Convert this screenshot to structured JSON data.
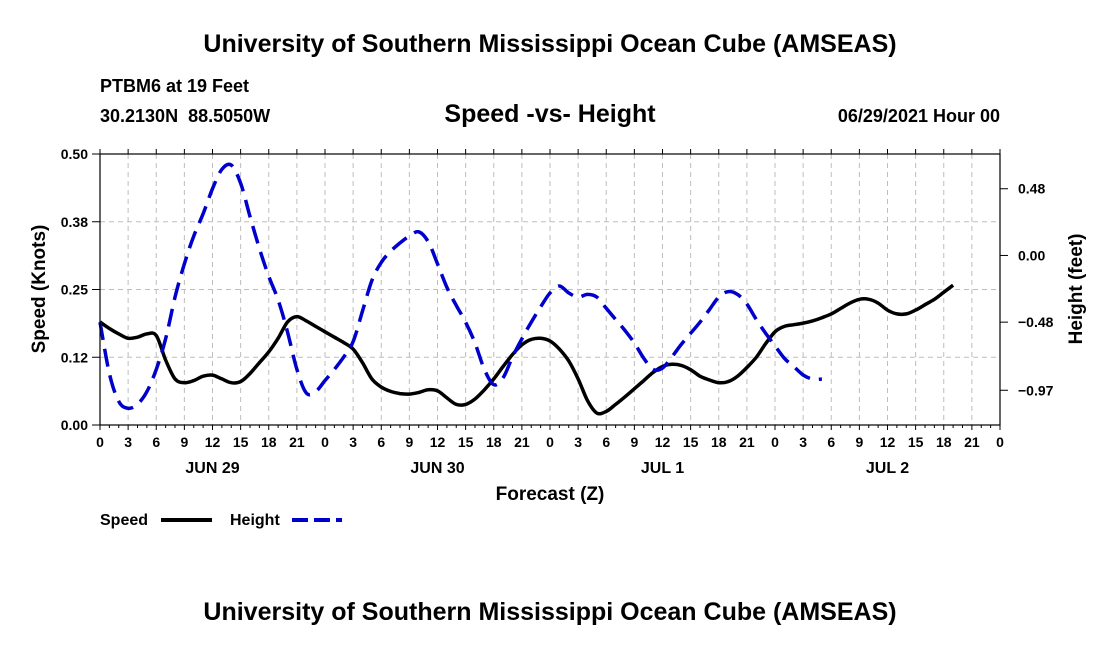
{
  "header": {
    "title": "University of Southern Mississippi Ocean Cube (AMSEAS)",
    "station": "PTBM6 at 19 Feet",
    "coords": "30.2130N  88.5050W",
    "subtitle": "Speed -vs- Height",
    "run_time": "06/29/2021 Hour 00"
  },
  "footer": {
    "title": "University of Southern Mississippi Ocean Cube (AMSEAS)"
  },
  "chart_data": {
    "type": "line",
    "title": "Speed -vs- Height",
    "xlabel": "Forecast (Z)",
    "ylabel": "Speed (Knots)",
    "y2label": "Height (feet)",
    "xlim": [
      0,
      96
    ],
    "ylim": [
      0,
      0.5
    ],
    "y2lim": [
      -1.22,
      0.73
    ],
    "x_ticks": [
      0,
      3,
      6,
      9,
      12,
      15,
      18,
      21,
      24,
      27,
      30,
      33,
      36,
      39,
      42,
      45,
      48,
      51,
      54,
      57,
      60,
      63,
      66,
      69,
      72,
      75,
      78,
      81,
      84,
      87,
      90,
      93,
      96
    ],
    "x_tick_labels": [
      "0",
      "3",
      "6",
      "9",
      "12",
      "15",
      "18",
      "21",
      "0",
      "3",
      "6",
      "9",
      "12",
      "15",
      "18",
      "21",
      "0",
      "3",
      "6",
      "9",
      "12",
      "15",
      "18",
      "21",
      "0",
      "3",
      "6",
      "9",
      "12",
      "15",
      "18",
      "21",
      "0"
    ],
    "day_labels": [
      {
        "label": "JUN 29",
        "x": 12
      },
      {
        "label": "JUN 30",
        "x": 36
      },
      {
        "label": "JUL 1",
        "x": 60
      },
      {
        "label": "JUL 2",
        "x": 84
      }
    ],
    "y_ticks": [
      0,
      0.125,
      0.25,
      0.375,
      0.5
    ],
    "y_tick_labels": [
      "0.00",
      "0.12",
      "0.25",
      "0.38",
      "0.50"
    ],
    "y2_ticks": [
      0.48,
      0.0,
      -0.48,
      -0.97
    ],
    "y2_tick_labels": [
      "0.48",
      "0.00",
      "−0.48",
      "−0.97"
    ],
    "grid": true,
    "legend_position": "bottom-left",
    "series": [
      {
        "name": "Speed",
        "axis": "left",
        "color": "#000000",
        "style": "solid",
        "points": [
          [
            0,
            0.19
          ],
          [
            1,
            0.178
          ],
          [
            2,
            0.168
          ],
          [
            3,
            0.16
          ],
          [
            4,
            0.162
          ],
          [
            5,
            0.168
          ],
          [
            6,
            0.165
          ],
          [
            7,
            0.12
          ],
          [
            8,
            0.085
          ],
          [
            9,
            0.078
          ],
          [
            10,
            0.082
          ],
          [
            11,
            0.09
          ],
          [
            12,
            0.092
          ],
          [
            13,
            0.085
          ],
          [
            14,
            0.078
          ],
          [
            15,
            0.08
          ],
          [
            16,
            0.095
          ],
          [
            17,
            0.115
          ],
          [
            18,
            0.135
          ],
          [
            19,
            0.16
          ],
          [
            20,
            0.19
          ],
          [
            21,
            0.2
          ],
          [
            22,
            0.192
          ],
          [
            23,
            0.182
          ],
          [
            24,
            0.172
          ],
          [
            25,
            0.162
          ],
          [
            26,
            0.152
          ],
          [
            27,
            0.14
          ],
          [
            28,
            0.115
          ],
          [
            29,
            0.085
          ],
          [
            30,
            0.07
          ],
          [
            31,
            0.062
          ],
          [
            32,
            0.058
          ],
          [
            33,
            0.057
          ],
          [
            34,
            0.06
          ],
          [
            35,
            0.065
          ],
          [
            36,
            0.063
          ],
          [
            37,
            0.05
          ],
          [
            38,
            0.038
          ],
          [
            39,
            0.038
          ],
          [
            40,
            0.048
          ],
          [
            41,
            0.065
          ],
          [
            42,
            0.085
          ],
          [
            43,
            0.108
          ],
          [
            44,
            0.13
          ],
          [
            45,
            0.148
          ],
          [
            46,
            0.158
          ],
          [
            47,
            0.16
          ],
          [
            48,
            0.155
          ],
          [
            49,
            0.14
          ],
          [
            50,
            0.118
          ],
          [
            51,
            0.085
          ],
          [
            52,
            0.045
          ],
          [
            53,
            0.022
          ],
          [
            54,
            0.025
          ],
          [
            55,
            0.038
          ],
          [
            56,
            0.052
          ],
          [
            57,
            0.067
          ],
          [
            58,
            0.082
          ],
          [
            59,
            0.097
          ],
          [
            60,
            0.108
          ],
          [
            61,
            0.112
          ],
          [
            62,
            0.11
          ],
          [
            63,
            0.102
          ],
          [
            64,
            0.09
          ],
          [
            65,
            0.083
          ],
          [
            66,
            0.078
          ],
          [
            67,
            0.08
          ],
          [
            68,
            0.09
          ],
          [
            69,
            0.106
          ],
          [
            70,
            0.125
          ],
          [
            71,
            0.15
          ],
          [
            72,
            0.172
          ],
          [
            73,
            0.182
          ],
          [
            74,
            0.185
          ],
          [
            75,
            0.188
          ],
          [
            76,
            0.192
          ],
          [
            77,
            0.198
          ],
          [
            78,
            0.205
          ],
          [
            79,
            0.215
          ],
          [
            80,
            0.225
          ],
          [
            81,
            0.232
          ],
          [
            82,
            0.232
          ],
          [
            83,
            0.225
          ],
          [
            84,
            0.212
          ],
          [
            85,
            0.205
          ],
          [
            86,
            0.205
          ],
          [
            87,
            0.212
          ],
          [
            88,
            0.222
          ],
          [
            89,
            0.232
          ],
          [
            90,
            0.245
          ],
          [
            91,
            0.258
          ]
        ]
      },
      {
        "name": "Height",
        "axis": "right",
        "color": "#0000cc",
        "style": "dashed",
        "points": [
          [
            0,
            -0.48
          ],
          [
            1,
            -0.85
          ],
          [
            2,
            -1.05
          ],
          [
            3,
            -1.1
          ],
          [
            4,
            -1.07
          ],
          [
            5,
            -0.98
          ],
          [
            6,
            -0.82
          ],
          [
            7,
            -0.6
          ],
          [
            8,
            -0.3
          ],
          [
            9,
            -0.06
          ],
          [
            10,
            0.14
          ],
          [
            11,
            0.3
          ],
          [
            12,
            0.48
          ],
          [
            13,
            0.62
          ],
          [
            14,
            0.65
          ],
          [
            15,
            0.52
          ],
          [
            16,
            0.28
          ],
          [
            17,
            0.05
          ],
          [
            18,
            -0.15
          ],
          [
            19,
            -0.32
          ],
          [
            20,
            -0.55
          ],
          [
            21,
            -0.82
          ],
          [
            22,
            -0.99
          ],
          [
            23,
            -0.98
          ],
          [
            24,
            -0.9
          ],
          [
            25,
            -0.82
          ],
          [
            26,
            -0.73
          ],
          [
            27,
            -0.62
          ],
          [
            28,
            -0.4
          ],
          [
            29,
            -0.18
          ],
          [
            30,
            -0.05
          ],
          [
            31,
            0.03
          ],
          [
            32,
            0.09
          ],
          [
            33,
            0.14
          ],
          [
            34,
            0.17
          ],
          [
            35,
            0.1
          ],
          [
            36,
            -0.06
          ],
          [
            37,
            -0.23
          ],
          [
            38,
            -0.36
          ],
          [
            39,
            -0.48
          ],
          [
            40,
            -0.63
          ],
          [
            41,
            -0.82
          ],
          [
            42,
            -0.93
          ],
          [
            43,
            -0.88
          ],
          [
            44,
            -0.73
          ],
          [
            45,
            -0.6
          ],
          [
            46,
            -0.48
          ],
          [
            47,
            -0.37
          ],
          [
            48,
            -0.27
          ],
          [
            49,
            -0.22
          ],
          [
            50,
            -0.27
          ],
          [
            51,
            -0.3
          ],
          [
            52,
            -0.28
          ],
          [
            53,
            -0.3
          ],
          [
            54,
            -0.38
          ],
          [
            55,
            -0.46
          ],
          [
            56,
            -0.54
          ],
          [
            57,
            -0.63
          ],
          [
            58,
            -0.74
          ],
          [
            59,
            -0.82
          ],
          [
            60,
            -0.81
          ],
          [
            61,
            -0.73
          ],
          [
            62,
            -0.64
          ],
          [
            63,
            -0.56
          ],
          [
            64,
            -0.48
          ],
          [
            65,
            -0.39
          ],
          [
            66,
            -0.3
          ],
          [
            67,
            -0.26
          ],
          [
            68,
            -0.28
          ],
          [
            69,
            -0.35
          ],
          [
            70,
            -0.46
          ],
          [
            71,
            -0.56
          ],
          [
            72,
            -0.65
          ],
          [
            73,
            -0.74
          ],
          [
            74,
            -0.8
          ],
          [
            75,
            -0.86
          ],
          [
            76,
            -0.89
          ],
          [
            77,
            -0.89
          ]
        ]
      }
    ]
  },
  "legend": {
    "speed_label": "Speed",
    "height_label": "Height"
  }
}
